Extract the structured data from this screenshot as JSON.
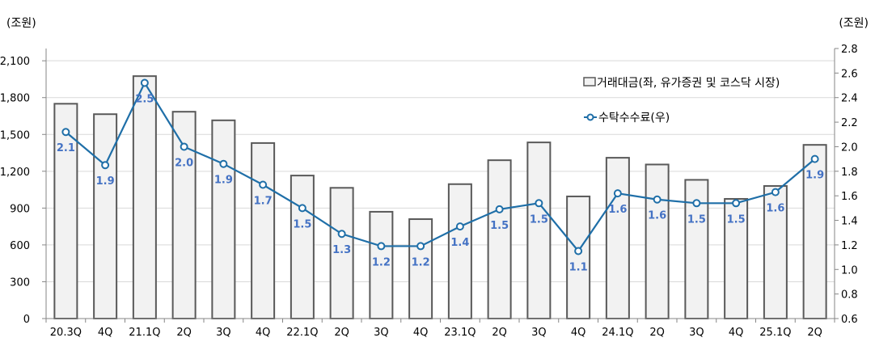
{
  "chart_data": {
    "type": "bar+line",
    "left_unit": "(조원)",
    "right_unit": "(조원)",
    "categories": [
      "20.3Q",
      "4Q",
      "21.1Q",
      "2Q",
      "3Q",
      "4Q",
      "22.1Q",
      "2Q",
      "3Q",
      "4Q",
      "23.1Q",
      "2Q",
      "3Q",
      "4Q",
      "24.1Q",
      "2Q",
      "3Q",
      "4Q",
      "25.1Q",
      "2Q"
    ],
    "left_axis": {
      "range": [
        0,
        2200
      ],
      "ticks": [
        0,
        300,
        600,
        900,
        1200,
        1500,
        1800,
        2100
      ],
      "tick_labels": [
        "0",
        "300",
        "600",
        "900",
        "1,200",
        "1,500",
        "1,800",
        "2,100"
      ]
    },
    "right_axis": {
      "range": [
        0.6,
        2.8
      ],
      "ticks": [
        0.6,
        0.8,
        1.0,
        1.2,
        1.4,
        1.6,
        1.8,
        2.0,
        2.2,
        2.4,
        2.6,
        2.8
      ],
      "tick_labels": [
        "0.6",
        "0.8",
        "1.0",
        "1.2",
        "1.4",
        "1.6",
        "1.8",
        "2.0",
        "2.2",
        "2.4",
        "2.6",
        "2.8"
      ]
    },
    "grid": "horizontal",
    "legend_position": "top-right",
    "series": [
      {
        "name": "거래대금(좌, 유가증권 및 코스닥 시장)",
        "type": "bar",
        "axis": "left",
        "color": "#f2f2f2",
        "edge": "#595959",
        "values": [
          1750,
          1665,
          1975,
          1685,
          1615,
          1430,
          1165,
          1065,
          870,
          810,
          1095,
          1290,
          1435,
          995,
          1310,
          1255,
          1130,
          975,
          1080,
          1415
        ]
      },
      {
        "name": "수탁수수료(우)",
        "type": "line",
        "axis": "right",
        "color": "#1f6fa8",
        "label_color": "#4472c4",
        "values": [
          2.12,
          1.85,
          2.52,
          2.0,
          1.86,
          1.69,
          1.5,
          1.29,
          1.19,
          1.19,
          1.35,
          1.49,
          1.54,
          1.15,
          1.62,
          1.57,
          1.54,
          1.54,
          1.63,
          1.9
        ],
        "labels": [
          "2.1",
          "1.9",
          "2.5",
          "2.0",
          "1.9",
          "1.7",
          "1.5",
          "1.3",
          "1.2",
          "1.2",
          "1.4",
          "1.5",
          "1.5",
          "1.1",
          "1.6",
          "1.6",
          "1.5",
          "1.5",
          "1.6",
          "1.9"
        ]
      }
    ]
  }
}
